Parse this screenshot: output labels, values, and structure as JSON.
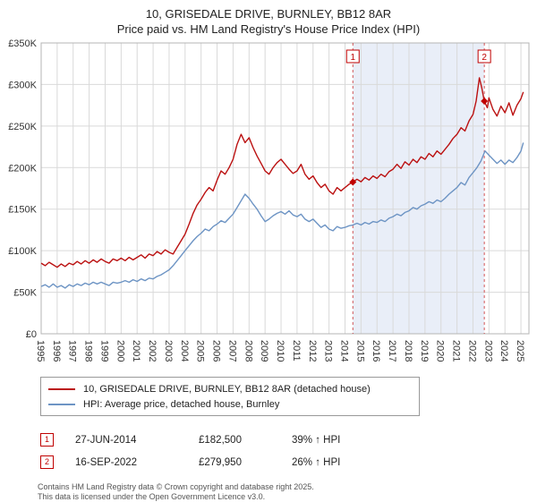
{
  "title": "10, GRISEDALE DRIVE, BURNLEY, BB12 8AR",
  "subtitle": "Price paid vs. HM Land Registry's House Price Index (HPI)",
  "colors": {
    "property_line": "#bb1111",
    "hpi_line": "#6d94c4",
    "band_fill": "#e9eef8",
    "grid": "#d9d9d9",
    "plot_border": "#b5b5b5",
    "marker": "#c00000"
  },
  "chart_data": {
    "type": "line",
    "title": "10, GRISEDALE DRIVE, BURNLEY, BB12 8AR",
    "subtitle": "Price paid vs. HM Land Registry's House Price Index (HPI)",
    "xlabel": "",
    "ylabel": "",
    "xlim": [
      1995,
      2025.5
    ],
    "ylim": [
      0,
      350
    ],
    "grid": true,
    "y_ticks": [
      [
        0,
        "£0"
      ],
      [
        50,
        "£50K"
      ],
      [
        100,
        "£100K"
      ],
      [
        150,
        "£150K"
      ],
      [
        200,
        "£200K"
      ],
      [
        250,
        "£250K"
      ],
      [
        300,
        "£300K"
      ],
      [
        350,
        "£350K"
      ]
    ],
    "x_ticks": [
      "1995",
      "1996",
      "1997",
      "1998",
      "1999",
      "2000",
      "2001",
      "2002",
      "2003",
      "2004",
      "2005",
      "2006",
      "2007",
      "2008",
      "2009",
      "2010",
      "2011",
      "2012",
      "2013",
      "2014",
      "2015",
      "2016",
      "2017",
      "2018",
      "2019",
      "2020",
      "2021",
      "2022",
      "2023",
      "2024",
      "2025"
    ],
    "series": [
      {
        "name": "10, GRISEDALE DRIVE, BURNLEY, BB12 8AR (detached house)",
        "color": "#bb1111",
        "points": [
          [
            1995.0,
            85
          ],
          [
            1995.25,
            82
          ],
          [
            1995.5,
            86
          ],
          [
            1995.75,
            83
          ],
          [
            1996.0,
            80
          ],
          [
            1996.25,
            84
          ],
          [
            1996.5,
            81
          ],
          [
            1996.75,
            85
          ],
          [
            1997.0,
            83
          ],
          [
            1997.25,
            87
          ],
          [
            1997.5,
            84
          ],
          [
            1997.75,
            88
          ],
          [
            1998.0,
            85
          ],
          [
            1998.25,
            89
          ],
          [
            1998.5,
            86
          ],
          [
            1998.75,
            90
          ],
          [
            1999.0,
            87
          ],
          [
            1999.25,
            85
          ],
          [
            1999.5,
            90
          ],
          [
            1999.75,
            88
          ],
          [
            2000.0,
            91
          ],
          [
            2000.25,
            88
          ],
          [
            2000.5,
            92
          ],
          [
            2000.75,
            89
          ],
          [
            2001.0,
            92
          ],
          [
            2001.25,
            95
          ],
          [
            2001.5,
            91
          ],
          [
            2001.75,
            96
          ],
          [
            2002.0,
            94
          ],
          [
            2002.25,
            99
          ],
          [
            2002.5,
            96
          ],
          [
            2002.75,
            101
          ],
          [
            2003.0,
            98
          ],
          [
            2003.25,
            96
          ],
          [
            2003.5,
            104
          ],
          [
            2003.75,
            112
          ],
          [
            2004.0,
            120
          ],
          [
            2004.25,
            132
          ],
          [
            2004.5,
            145
          ],
          [
            2004.75,
            155
          ],
          [
            2005.0,
            162
          ],
          [
            2005.25,
            170
          ],
          [
            2005.5,
            176
          ],
          [
            2005.75,
            172
          ],
          [
            2006.0,
            185
          ],
          [
            2006.25,
            196
          ],
          [
            2006.5,
            192
          ],
          [
            2006.75,
            200
          ],
          [
            2007.0,
            210
          ],
          [
            2007.25,
            228
          ],
          [
            2007.5,
            240
          ],
          [
            2007.75,
            230
          ],
          [
            2008.0,
            236
          ],
          [
            2008.25,
            224
          ],
          [
            2008.5,
            214
          ],
          [
            2008.75,
            205
          ],
          [
            2009.0,
            196
          ],
          [
            2009.25,
            192
          ],
          [
            2009.5,
            200
          ],
          [
            2009.75,
            206
          ],
          [
            2010.0,
            210
          ],
          [
            2010.25,
            204
          ],
          [
            2010.5,
            198
          ],
          [
            2010.75,
            193
          ],
          [
            2011.0,
            196
          ],
          [
            2011.25,
            204
          ],
          [
            2011.5,
            192
          ],
          [
            2011.75,
            186
          ],
          [
            2012.0,
            190
          ],
          [
            2012.25,
            182
          ],
          [
            2012.5,
            176
          ],
          [
            2012.75,
            180
          ],
          [
            2013.0,
            172
          ],
          [
            2013.25,
            168
          ],
          [
            2013.5,
            176
          ],
          [
            2013.75,
            172
          ],
          [
            2014.0,
            176
          ],
          [
            2014.25,
            180
          ],
          [
            2014.49,
            182.5
          ],
          [
            2014.75,
            186
          ],
          [
            2015.0,
            183
          ],
          [
            2015.25,
            188
          ],
          [
            2015.5,
            185
          ],
          [
            2015.75,
            190
          ],
          [
            2016.0,
            187
          ],
          [
            2016.25,
            192
          ],
          [
            2016.5,
            189
          ],
          [
            2016.75,
            195
          ],
          [
            2017.0,
            198
          ],
          [
            2017.25,
            204
          ],
          [
            2017.5,
            199
          ],
          [
            2017.75,
            207
          ],
          [
            2018.0,
            203
          ],
          [
            2018.25,
            210
          ],
          [
            2018.5,
            206
          ],
          [
            2018.75,
            213
          ],
          [
            2019.0,
            210
          ],
          [
            2019.25,
            217
          ],
          [
            2019.5,
            213
          ],
          [
            2019.75,
            220
          ],
          [
            2020.0,
            216
          ],
          [
            2020.25,
            222
          ],
          [
            2020.5,
            228
          ],
          [
            2020.75,
            235
          ],
          [
            2021.0,
            240
          ],
          [
            2021.25,
            248
          ],
          [
            2021.5,
            244
          ],
          [
            2021.75,
            256
          ],
          [
            2022.0,
            264
          ],
          [
            2022.2,
            280
          ],
          [
            2022.4,
            308
          ],
          [
            2022.55,
            296
          ],
          [
            2022.71,
            279.95
          ],
          [
            2022.9,
            272
          ],
          [
            2023.0,
            284
          ],
          [
            2023.25,
            270
          ],
          [
            2023.5,
            262
          ],
          [
            2023.75,
            274
          ],
          [
            2024.0,
            266
          ],
          [
            2024.25,
            278
          ],
          [
            2024.5,
            263
          ],
          [
            2024.75,
            275
          ],
          [
            2025.0,
            283
          ],
          [
            2025.15,
            291
          ]
        ]
      },
      {
        "name": "HPI: Average price, detached house, Burnley",
        "color": "#6d94c4",
        "points": [
          [
            1995.0,
            57
          ],
          [
            1995.25,
            59
          ],
          [
            1995.5,
            56
          ],
          [
            1995.75,
            60
          ],
          [
            1996.0,
            56
          ],
          [
            1996.25,
            58
          ],
          [
            1996.5,
            55
          ],
          [
            1996.75,
            59
          ],
          [
            1997.0,
            57
          ],
          [
            1997.25,
            60
          ],
          [
            1997.5,
            58
          ],
          [
            1997.75,
            61
          ],
          [
            1998.0,
            59
          ],
          [
            1998.25,
            62
          ],
          [
            1998.5,
            60
          ],
          [
            1998.75,
            62
          ],
          [
            1999.0,
            60
          ],
          [
            1999.25,
            58
          ],
          [
            1999.5,
            62
          ],
          [
            1999.75,
            61
          ],
          [
            2000.0,
            62
          ],
          [
            2000.25,
            64
          ],
          [
            2000.5,
            62
          ],
          [
            2000.75,
            65
          ],
          [
            2001.0,
            63
          ],
          [
            2001.25,
            66
          ],
          [
            2001.5,
            64
          ],
          [
            2001.75,
            67
          ],
          [
            2002.0,
            66
          ],
          [
            2002.25,
            69
          ],
          [
            2002.5,
            71
          ],
          [
            2002.75,
            74
          ],
          [
            2003.0,
            77
          ],
          [
            2003.25,
            82
          ],
          [
            2003.5,
            88
          ],
          [
            2003.75,
            94
          ],
          [
            2004.0,
            100
          ],
          [
            2004.25,
            106
          ],
          [
            2004.5,
            112
          ],
          [
            2004.75,
            117
          ],
          [
            2005.0,
            121
          ],
          [
            2005.25,
            126
          ],
          [
            2005.5,
            124
          ],
          [
            2005.75,
            129
          ],
          [
            2006.0,
            132
          ],
          [
            2006.25,
            136
          ],
          [
            2006.5,
            134
          ],
          [
            2006.75,
            139
          ],
          [
            2007.0,
            144
          ],
          [
            2007.25,
            152
          ],
          [
            2007.5,
            160
          ],
          [
            2007.75,
            168
          ],
          [
            2008.0,
            163
          ],
          [
            2008.25,
            156
          ],
          [
            2008.5,
            150
          ],
          [
            2008.75,
            142
          ],
          [
            2009.0,
            135
          ],
          [
            2009.25,
            138
          ],
          [
            2009.5,
            142
          ],
          [
            2009.75,
            145
          ],
          [
            2010.0,
            147
          ],
          [
            2010.25,
            144
          ],
          [
            2010.5,
            148
          ],
          [
            2010.75,
            143
          ],
          [
            2011.0,
            141
          ],
          [
            2011.25,
            144
          ],
          [
            2011.5,
            138
          ],
          [
            2011.75,
            135
          ],
          [
            2012.0,
            138
          ],
          [
            2012.25,
            133
          ],
          [
            2012.5,
            128
          ],
          [
            2012.75,
            131
          ],
          [
            2013.0,
            126
          ],
          [
            2013.25,
            124
          ],
          [
            2013.5,
            129
          ],
          [
            2013.75,
            127
          ],
          [
            2014.0,
            128
          ],
          [
            2014.25,
            130
          ],
          [
            2014.5,
            131
          ],
          [
            2014.75,
            133
          ],
          [
            2015.0,
            131
          ],
          [
            2015.25,
            134
          ],
          [
            2015.5,
            132
          ],
          [
            2015.75,
            135
          ],
          [
            2016.0,
            134
          ],
          [
            2016.25,
            137
          ],
          [
            2016.5,
            135
          ],
          [
            2016.75,
            139
          ],
          [
            2017.0,
            141
          ],
          [
            2017.25,
            144
          ],
          [
            2017.5,
            142
          ],
          [
            2017.75,
            146
          ],
          [
            2018.0,
            148
          ],
          [
            2018.25,
            152
          ],
          [
            2018.5,
            150
          ],
          [
            2018.75,
            154
          ],
          [
            2019.0,
            156
          ],
          [
            2019.25,
            159
          ],
          [
            2019.5,
            157
          ],
          [
            2019.75,
            161
          ],
          [
            2020.0,
            159
          ],
          [
            2020.25,
            163
          ],
          [
            2020.5,
            168
          ],
          [
            2020.75,
            172
          ],
          [
            2021.0,
            176
          ],
          [
            2021.25,
            182
          ],
          [
            2021.5,
            179
          ],
          [
            2021.75,
            188
          ],
          [
            2022.0,
            194
          ],
          [
            2022.25,
            200
          ],
          [
            2022.5,
            208
          ],
          [
            2022.75,
            220
          ],
          [
            2023.0,
            215
          ],
          [
            2023.25,
            210
          ],
          [
            2023.5,
            205
          ],
          [
            2023.75,
            209
          ],
          [
            2024.0,
            204
          ],
          [
            2024.25,
            209
          ],
          [
            2024.5,
            206
          ],
          [
            2024.75,
            212
          ],
          [
            2025.0,
            220
          ],
          [
            2025.15,
            230
          ]
        ]
      }
    ],
    "markers": [
      {
        "n": "1",
        "x": 2014.49,
        "y": 182.5
      },
      {
        "n": "2",
        "x": 2022.71,
        "y": 279.95
      }
    ],
    "legend_position": "bottom"
  },
  "sales": [
    {
      "n": "1",
      "date": "27-JUN-2014",
      "price": "£182,500",
      "hpi": "39% ↑ HPI"
    },
    {
      "n": "2",
      "date": "16-SEP-2022",
      "price": "£279,950",
      "hpi": "26% ↑ HPI"
    }
  ],
  "footer": {
    "line1": "Contains HM Land Registry data © Crown copyright and database right 2025.",
    "line2": "This data is licensed under the Open Government Licence v3.0."
  }
}
